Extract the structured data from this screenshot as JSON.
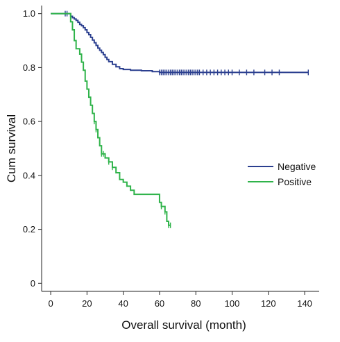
{
  "chart_data": {
    "type": "line",
    "title": "",
    "xlabel": "Overall survival (month)",
    "ylabel": "Cum survival",
    "xlim": [
      -5,
      148
    ],
    "ylim": [
      -0.03,
      1.03
    ],
    "xticks": [
      0,
      20,
      40,
      60,
      80,
      100,
      120,
      140
    ],
    "yticks": [
      0,
      0.2,
      0.4,
      0.6,
      0.8,
      1.0
    ],
    "ytick_labels": [
      "0",
      "0.2",
      "0.4",
      "0.6",
      "0.8",
      "1.0"
    ],
    "grid": false,
    "legend_position": "right",
    "step": true,
    "series": [
      {
        "name": "Negative",
        "color": "#2b3f8f",
        "points": [
          [
            0,
            1.0
          ],
          [
            10,
            1.0
          ],
          [
            11,
            0.99
          ],
          [
            12,
            0.985
          ],
          [
            13,
            0.98
          ],
          [
            14,
            0.975
          ],
          [
            15,
            0.968
          ],
          [
            16,
            0.96
          ],
          [
            17,
            0.955
          ],
          [
            18,
            0.948
          ],
          [
            19,
            0.94
          ],
          [
            20,
            0.93
          ],
          [
            21,
            0.922
          ],
          [
            22,
            0.912
          ],
          [
            23,
            0.902
          ],
          [
            24,
            0.892
          ],
          [
            25,
            0.882
          ],
          [
            26,
            0.872
          ],
          [
            27,
            0.864
          ],
          [
            28,
            0.856
          ],
          [
            29,
            0.848
          ],
          [
            30,
            0.838
          ],
          [
            31,
            0.83
          ],
          [
            32,
            0.822
          ],
          [
            34,
            0.812
          ],
          [
            36,
            0.803
          ],
          [
            38,
            0.796
          ],
          [
            40,
            0.793
          ],
          [
            44,
            0.79
          ],
          [
            50,
            0.788
          ],
          [
            56,
            0.785
          ],
          [
            60,
            0.782
          ],
          [
            142,
            0.782
          ]
        ],
        "censored_x": [
          8,
          9,
          60,
          61,
          62,
          63,
          64,
          65,
          66,
          67,
          68,
          69,
          70,
          71,
          72,
          73,
          74,
          75,
          76,
          77,
          78,
          79,
          80,
          81,
          82,
          84,
          86,
          88,
          90,
          92,
          94,
          96,
          98,
          100,
          104,
          108,
          112,
          118,
          122,
          126,
          142
        ]
      },
      {
        "name": "Positive",
        "color": "#2fb34a",
        "points": [
          [
            0,
            1.0
          ],
          [
            9,
            1.0
          ],
          [
            11,
            0.97
          ],
          [
            12,
            0.94
          ],
          [
            13,
            0.9
          ],
          [
            14,
            0.87
          ],
          [
            16,
            0.85
          ],
          [
            17,
            0.82
          ],
          [
            18,
            0.79
          ],
          [
            19,
            0.75
          ],
          [
            20,
            0.72
          ],
          [
            21,
            0.69
          ],
          [
            22,
            0.66
          ],
          [
            23,
            0.63
          ],
          [
            24,
            0.6
          ],
          [
            25,
            0.57
          ],
          [
            26,
            0.54
          ],
          [
            27,
            0.51
          ],
          [
            28,
            0.48
          ],
          [
            30,
            0.465
          ],
          [
            32,
            0.45
          ],
          [
            34,
            0.43
          ],
          [
            36,
            0.41
          ],
          [
            38,
            0.385
          ],
          [
            40,
            0.375
          ],
          [
            42,
            0.36
          ],
          [
            44,
            0.345
          ],
          [
            46,
            0.33
          ],
          [
            60,
            0.3
          ],
          [
            61,
            0.285
          ],
          [
            63,
            0.265
          ],
          [
            64,
            0.23
          ],
          [
            65,
            0.215
          ],
          [
            66,
            0.215
          ]
        ],
        "censored_x": [
          24,
          25,
          28,
          29,
          32,
          34,
          61,
          63,
          65,
          66
        ]
      }
    ]
  }
}
